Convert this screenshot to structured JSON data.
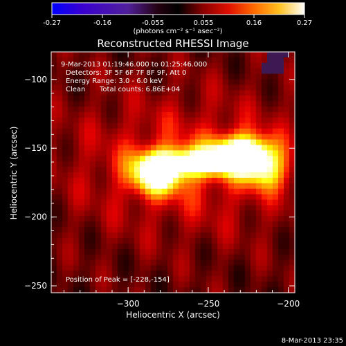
{
  "colorbar": {
    "ticks": [
      "-0.27",
      "-0.16",
      "-0.055",
      "0.055",
      "0.16",
      "0.27"
    ],
    "unit_label": "(photons cm⁻² s⁻¹ asec⁻²)",
    "colormap": "red-temperature with blue negative range"
  },
  "title": "Reconstructed RHESSI Image",
  "info": {
    "time_range": "9-Mar-2013 01:19:46.000 to 01:25:46.000",
    "detectors": "Detectors: 3F 5F 6F 7F 8F 9F, Att 0",
    "energy_range": "Energy Range: 3.0 - 6.0 keV",
    "algorithm": "Clean",
    "total_counts": "Total counts: 6.86E+04"
  },
  "peak_label": "Position of Peak = [-228,-154]",
  "timestamp": "8-Mar-2013 23:35",
  "chart_data": {
    "type": "heatmap",
    "title": "Reconstructed RHESSI Image",
    "xlabel": "Heliocentric X (arcsec)",
    "ylabel": "Heliocentric Y (arcsec)",
    "xlim": [
      -348,
      -196
    ],
    "ylim": [
      -255,
      -80
    ],
    "x_ticks": [
      -300,
      -250,
      -200
    ],
    "x_tick_labels": [
      "−300",
      "−250",
      "−200"
    ],
    "y_ticks": [
      -100,
      -150,
      -200,
      -250
    ],
    "y_tick_labels": [
      "−100",
      "−150",
      "−200",
      "−250"
    ],
    "value_range": [
      -0.27,
      0.27
    ],
    "peak": {
      "x": -228,
      "y": -154
    },
    "sources": [
      {
        "x": -228,
        "y": -154,
        "sx": 13,
        "sy": 9,
        "amp": 0.27
      },
      {
        "x": -282,
        "y": -168,
        "sx": 11,
        "sy": 10,
        "amp": 0.24
      },
      {
        "x": -255,
        "y": -160,
        "sx": 18,
        "sy": 7,
        "amp": 0.19
      },
      {
        "x": -215,
        "y": -168,
        "sx": 10,
        "sy": 9,
        "amp": 0.12
      },
      {
        "x": -262,
        "y": -162,
        "sx": 55,
        "sy": 35,
        "amp": 0.07
      }
    ],
    "grid": false
  }
}
